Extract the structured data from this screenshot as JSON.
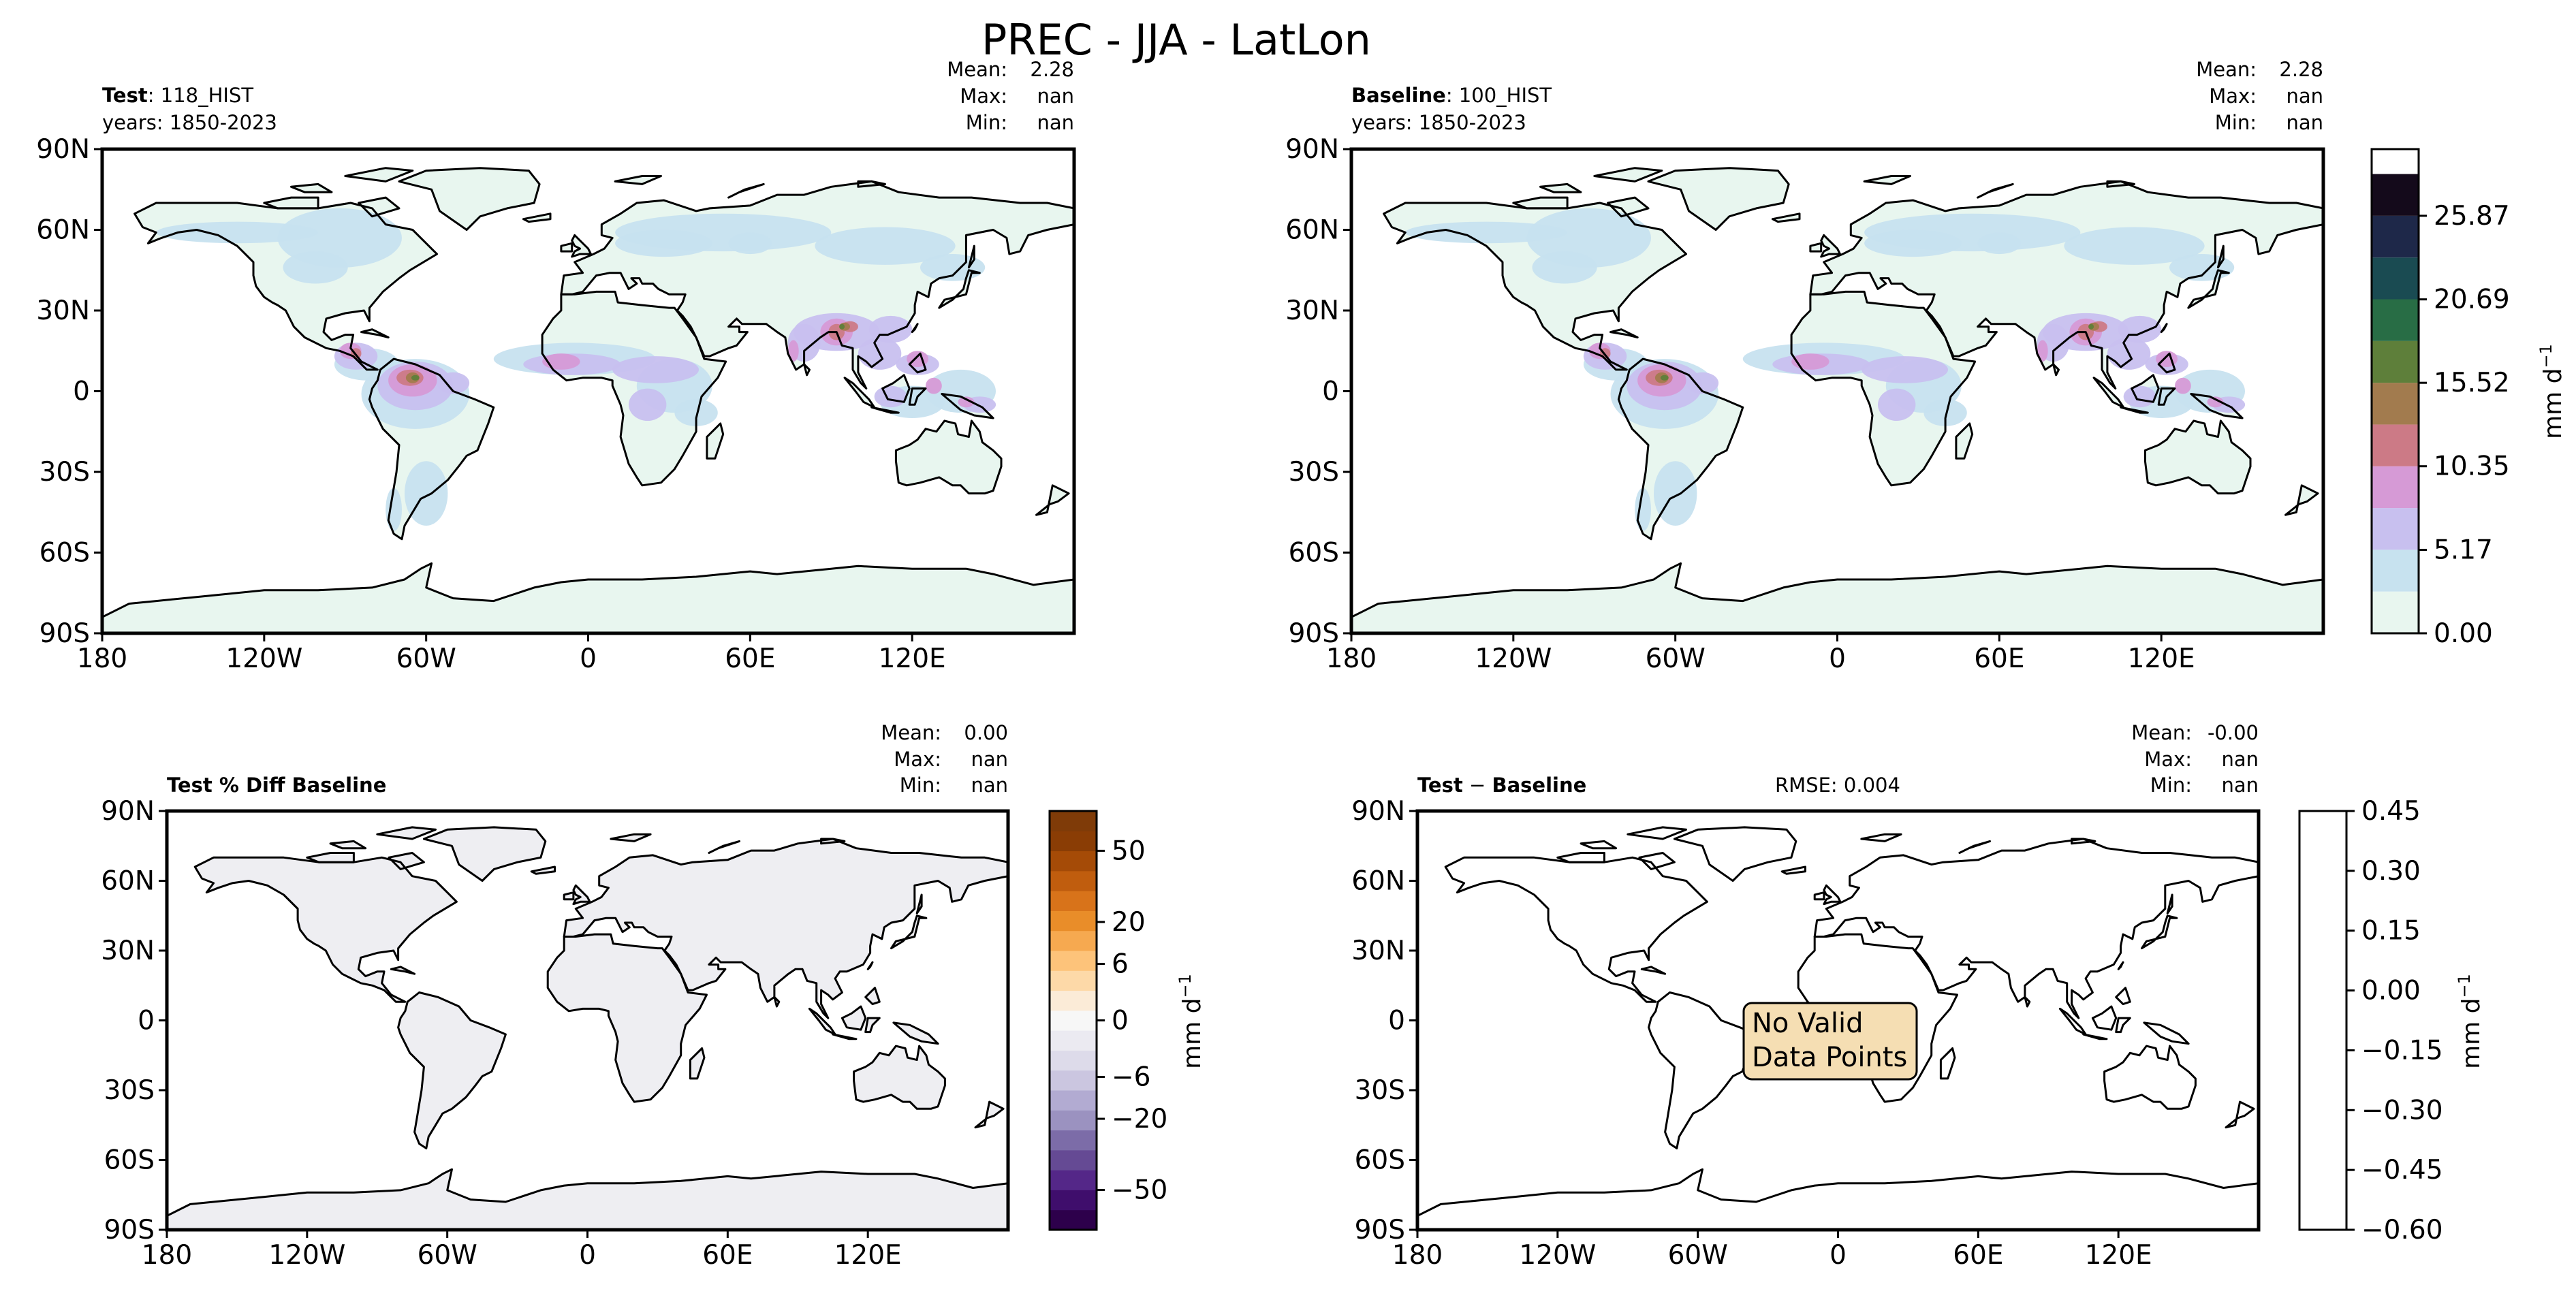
{
  "figure": {
    "title": "PREC - JJA - LatLon",
    "units_label": "mm d",
    "units_sup": "−1"
  },
  "panels": [
    {
      "id": "test",
      "label_bold": "Test",
      "label_rest": ": 118_HIST",
      "years": "years: 1850-2023",
      "stats": {
        "mean": "2.28",
        "max": "nan",
        "min": "nan"
      },
      "field": "precip"
    },
    {
      "id": "baseline",
      "label_bold": "Baseline",
      "label_rest": ": 100_HIST",
      "years": "years: 1850-2023",
      "stats": {
        "mean": "2.28",
        "max": "nan",
        "min": "nan"
      },
      "field": "precip"
    },
    {
      "id": "pctdiff",
      "label_bold": "Test % Diff Baseline",
      "label_rest": "",
      "years": "",
      "stats": {
        "mean": "0.00",
        "max": "nan",
        "min": "nan"
      },
      "field": "pct"
    },
    {
      "id": "diff",
      "label_bold": "Test",
      "label_mid": " − ",
      "label_bold2": "Baseline",
      "years": "",
      "rmse": "RMSE: 0.004",
      "stats": {
        "mean": "-0.00",
        "max": "nan",
        "min": "nan"
      },
      "no_data_lines": [
        "No Valid",
        "Data Points"
      ],
      "field": "empty"
    }
  ],
  "axes": {
    "lon_ticks": [
      "180",
      "120W",
      "60W",
      "0",
      "60E",
      "120E"
    ],
    "lat_ticks": [
      "90N",
      "60N",
      "30N",
      "0",
      "30S",
      "60S",
      "90S"
    ],
    "stat_labels": {
      "mean": "Mean:",
      "max": "Max:",
      "min": "Min:"
    }
  },
  "colorbars": {
    "precip": {
      "ticks": [
        "0.00",
        "5.17",
        "10.35",
        "15.52",
        "20.69",
        "25.87"
      ],
      "tick_values": [
        0.0,
        5.17,
        10.35,
        15.52,
        20.69,
        25.87
      ],
      "range": [
        0,
        30
      ],
      "colors": [
        "#e8f6ef",
        "#c7e2ef",
        "#c8c0ef",
        "#d69ad6",
        "#cc7a86",
        "#a27b4e",
        "#5e7f3a",
        "#286d45",
        "#1a4b52",
        "#1e2849",
        "#140a1b"
      ]
    },
    "pct": {
      "ticks": [
        "−50",
        "−20",
        "−6",
        "0",
        "6",
        "20",
        "50"
      ],
      "colors": [
        "#2d004b",
        "#3f0e6c",
        "#542788",
        "#654a94",
        "#7c6ca8",
        "#9b92c0",
        "#b2abd2",
        "#cbc6e0",
        "#dddbea",
        "#ebeaf1",
        "#f7f7f7",
        "#fbebd7",
        "#fdd9a8",
        "#fdc37a",
        "#f6a950",
        "#e98d29",
        "#d8731a",
        "#c05d0e",
        "#a54b07",
        "#8a3d05",
        "#7f3b08"
      ]
    },
    "diff": {
      "ticks": [
        "0.45",
        "0.30",
        "0.15",
        "0.00",
        "−0.15",
        "−0.30",
        "−0.45",
        "−0.60"
      ],
      "colors": [
        "#ffffff"
      ]
    }
  },
  "chart_data": {
    "type": "heatmap",
    "title": "PREC - JJA - LatLon",
    "xlabel": "",
    "ylabel": "",
    "xticks": [
      "180",
      "120W",
      "60W",
      "0",
      "60E",
      "120E"
    ],
    "yticks": [
      "90N",
      "60N",
      "30N",
      "0",
      "30S",
      "60S",
      "90S"
    ],
    "xlim": [
      -180,
      180
    ],
    "ylim": [
      -90,
      90
    ],
    "panels": [
      {
        "name": "Test: 118_HIST",
        "mean": 2.28,
        "max": "nan",
        "min": "nan",
        "colorbar_levels": [
          0.0,
          5.17,
          10.35,
          15.52,
          20.69,
          25.87
        ]
      },
      {
        "name": "Baseline: 100_HIST",
        "mean": 2.28,
        "max": "nan",
        "min": "nan",
        "colorbar_levels": [
          0.0,
          5.17,
          10.35,
          15.52,
          20.69,
          25.87
        ]
      },
      {
        "name": "Test % Diff Baseline",
        "mean": 0.0,
        "max": "nan",
        "min": "nan",
        "colorbar_levels": [
          -50,
          -20,
          -6,
          0,
          6,
          20,
          50
        ]
      },
      {
        "name": "Test − Baseline",
        "mean": -0.0,
        "max": "nan",
        "min": "nan",
        "rmse": 0.004,
        "colorbar_levels": [
          0.45,
          0.3,
          0.15,
          0.0,
          -0.15,
          -0.3,
          -0.45,
          -0.6
        ]
      }
    ],
    "precip_maxima": [
      {
        "lon": -65,
        "lat": 5,
        "value": 18
      },
      {
        "lon": 92,
        "lat": 22,
        "value": 18
      },
      {
        "lon": 95,
        "lat": 25,
        "value": 16
      },
      {
        "lon": -5,
        "lat": 10,
        "value": 9
      },
      {
        "lon": 30,
        "lat": 10,
        "value": 9
      },
      {
        "lon": 125,
        "lat": 8,
        "value": 11
      },
      {
        "lon": -85,
        "lat": 15,
        "value": 10
      }
    ]
  }
}
